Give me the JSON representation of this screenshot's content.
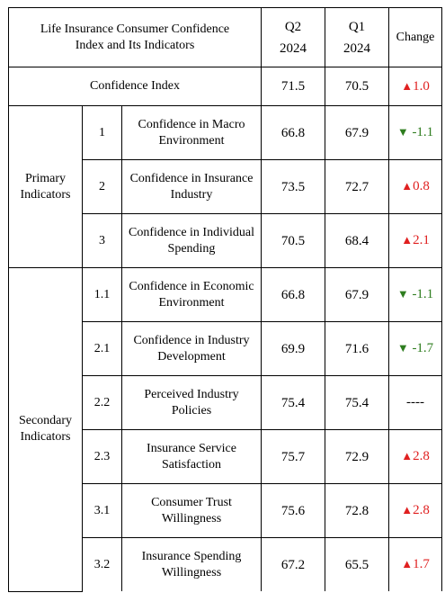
{
  "header": {
    "title": "Life Insurance Consumer Confidence Index and Its Indicators",
    "q2_label": "Q2",
    "q2_year": "2024",
    "q1_label": "Q1",
    "q1_year": "2024",
    "change_label": "Change"
  },
  "confidence_index": {
    "label": "Confidence Index",
    "q2": "71.5",
    "q1": "70.5",
    "change": "1.0",
    "direction": "up"
  },
  "groups": {
    "primary": "Primary Indicators",
    "secondary": "Secondary Indicators"
  },
  "rows": [
    {
      "code": "1",
      "name": "Confidence in Macro Environment",
      "q2": "66.8",
      "q1": "67.9",
      "change": "-1.1",
      "direction": "down"
    },
    {
      "code": "2",
      "name": "Confidence in Insurance Industry",
      "q2": "73.5",
      "q1": "72.7",
      "change": "0.8",
      "direction": "up"
    },
    {
      "code": "3",
      "name": "Confidence in Individual Spending",
      "q2": "70.5",
      "q1": "68.4",
      "change": "2.1",
      "direction": "up"
    },
    {
      "code": "1.1",
      "name": "Confidence in Economic Environment",
      "q2": "66.8",
      "q1": "67.9",
      "change": "-1.1",
      "direction": "down"
    },
    {
      "code": "2.1",
      "name": "Confidence in Industry Development",
      "q2": "69.9",
      "q1": "71.6",
      "change": "-1.7",
      "direction": "down"
    },
    {
      "code": "2.2",
      "name": "Perceived Industry Policies",
      "q2": "75.4",
      "q1": "75.4",
      "change": "----",
      "direction": "none"
    },
    {
      "code": "2.3",
      "name": "Insurance Service Satisfaction",
      "q2": "75.7",
      "q1": "72.9",
      "change": "2.8",
      "direction": "up"
    },
    {
      "code": "3.1",
      "name": "Consumer Trust Willingness",
      "q2": "75.6",
      "q1": "72.8",
      "change": "2.8",
      "direction": "up"
    },
    {
      "code": "3.2",
      "name": "Insurance Spending Willingness",
      "q2": "67.2",
      "q1": "65.5",
      "change": "1.7",
      "direction": "up"
    }
  ],
  "colors": {
    "up": "#e02020",
    "down": "#2e7d1f"
  },
  "icons": {
    "up": "triangle-up-icon",
    "down": "triangle-down-icon"
  }
}
